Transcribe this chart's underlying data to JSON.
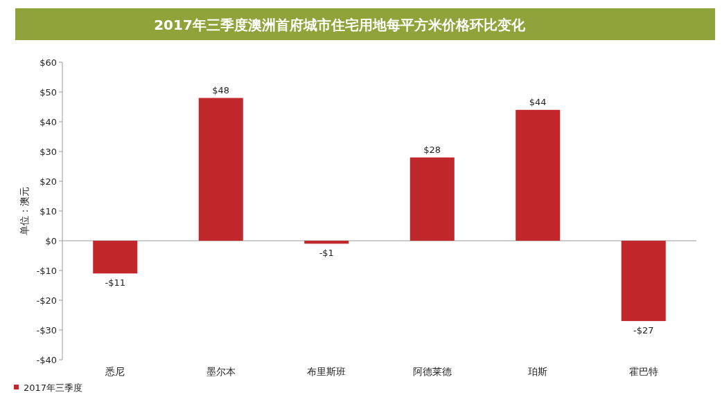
{
  "chart_data": {
    "type": "bar",
    "title": "2017年三季度澳洲首府城市住宅用地每平方米价格环比变化",
    "ylabel": "单位：澳元",
    "categories": [
      "悉尼",
      "墨尔本",
      "布里斯班",
      "阿德莱德",
      "珀斯",
      "霍巴特"
    ],
    "series": [
      {
        "name": "2017年三季度",
        "color": "#c0282b",
        "values": [
          -11,
          48,
          -1,
          28,
          44,
          -27
        ],
        "value_labels": [
          "-$11",
          "$48",
          "-$1",
          "$28",
          "$44",
          "-$27"
        ]
      }
    ],
    "ylim": [
      -40,
      60
    ],
    "yticks": [
      {
        "value": -40,
        "label": "-$40"
      },
      {
        "value": -30,
        "label": "-$30"
      },
      {
        "value": -20,
        "label": "-$20"
      },
      {
        "value": -10,
        "label": "-$10"
      },
      {
        "value": 0,
        "label": "$0"
      },
      {
        "value": 10,
        "label": "$10"
      },
      {
        "value": 20,
        "label": "$20"
      },
      {
        "value": 30,
        "label": "$30"
      },
      {
        "value": 40,
        "label": "$40"
      },
      {
        "value": 50,
        "label": "$50"
      },
      {
        "value": 60,
        "label": "$60"
      }
    ],
    "legend": "bottom left"
  }
}
